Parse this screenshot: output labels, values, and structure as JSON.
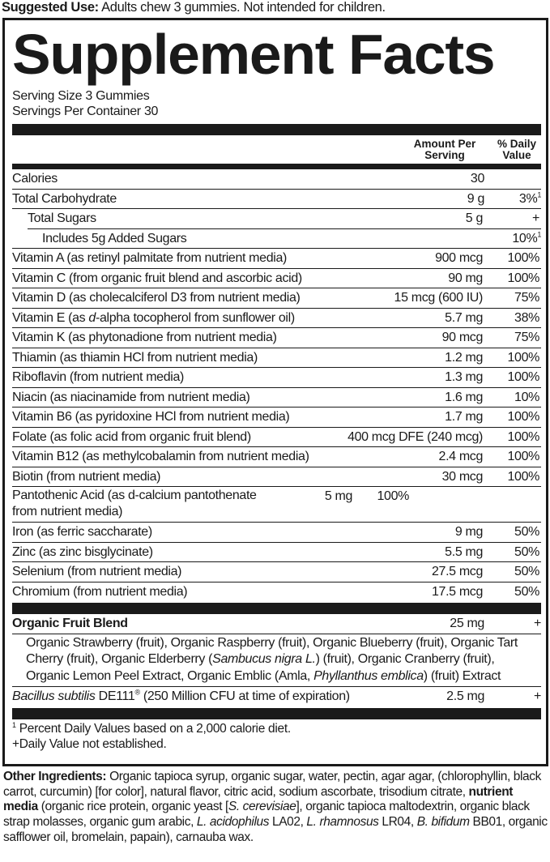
{
  "suggested_use": {
    "label": "Suggested Use:",
    "text": " Adults chew 3 gummies. Not intended for children."
  },
  "title": "Supplement Facts",
  "serving_size": "Serving Size 3 Gummies",
  "servings_per_container": "Servings Per Container 30",
  "headers": {
    "amount_line1": "Amount Per",
    "amount_line2": "Serving",
    "dv_line1": "% Daily",
    "dv_line2": "Value"
  },
  "rows": [
    {
      "name": [
        [
          "Calories",
          ""
        ]
      ],
      "amount": "30",
      "dv": ""
    },
    {
      "name": [
        [
          "Total Carbohydrate",
          ""
        ]
      ],
      "amount": "9 g",
      "dv": "3%",
      "dv_sup": "1"
    },
    {
      "name": [
        [
          "Total Sugars",
          ""
        ]
      ],
      "amount": "5 g",
      "dv": "+",
      "indent": 1
    },
    {
      "name": [
        [
          "Includes 5g Added Sugars",
          ""
        ]
      ],
      "amount": "",
      "dv": "10%",
      "dv_sup": "1",
      "indent": 2
    },
    {
      "name": [
        [
          "Vitamin A (as retinyl palmitate from nutrient media)",
          ""
        ]
      ],
      "amount": "900 mcg",
      "dv": "100%"
    },
    {
      "name": [
        [
          "Vitamin C (from organic fruit blend and ascorbic acid)",
          ""
        ]
      ],
      "amount": "90 mg",
      "dv": "100%"
    },
    {
      "name": [
        [
          "Vitamin D (as cholecalciferol D3 from nutrient media)",
          ""
        ]
      ],
      "amount": "15 mcg (600 IU)",
      "dv": "75%"
    },
    {
      "name": [
        [
          "Vitamin E (as ",
          ""
        ],
        [
          "d",
          "i"
        ],
        [
          "-alpha tocopherol from sunflower oil)",
          ""
        ]
      ],
      "amount": "5.7 mg",
      "dv": "38%"
    },
    {
      "name": [
        [
          "Vitamin K (as phytonadione from nutrient media)",
          ""
        ]
      ],
      "amount": "90 mcg",
      "dv": "75%"
    },
    {
      "name": [
        [
          "Thiamin (as thiamin HCl from nutrient media)",
          ""
        ]
      ],
      "amount": "1.2 mg",
      "dv": "100%"
    },
    {
      "name": [
        [
          "Riboflavin (from nutrient media)",
          ""
        ]
      ],
      "amount": "1.3 mg",
      "dv": "100%"
    },
    {
      "name": [
        [
          "Niacin (as niacinamide from nutrient media)",
          ""
        ]
      ],
      "amount": "1.6 mg",
      "dv": "10%"
    },
    {
      "name": [
        [
          "Vitamin B6 (as pyridoxine HCl from nutrient media)",
          ""
        ]
      ],
      "amount": "1.7 mg",
      "dv": "100%"
    },
    {
      "name": [
        [
          "Folate (as folic acid from organic fruit blend)",
          ""
        ]
      ],
      "amount": "400 mcg DFE (240 mcg)",
      "dv": "100%"
    },
    {
      "name": [
        [
          "Vitamin B12 (as methylcobalamin from nutrient media)",
          ""
        ]
      ],
      "amount": "2.4 mcg",
      "dv": "100%"
    },
    {
      "name": [
        [
          "Biotin (from nutrient media)",
          ""
        ]
      ],
      "amount": "30 mcg",
      "dv": "100%"
    },
    {
      "name": [
        [
          "Pantothenic Acid (as d-calcium pantothenate from nutrient media)",
          ""
        ]
      ],
      "amount": "5 mg",
      "dv": "100%",
      "two": true
    },
    {
      "name": [
        [
          "Iron (as ferric saccharate)",
          ""
        ]
      ],
      "amount": "9 mg",
      "dv": "50%"
    },
    {
      "name": [
        [
          "Zinc (as zinc bisglycinate)",
          ""
        ]
      ],
      "amount": "5.5 mg",
      "dv": "50%"
    },
    {
      "name": [
        [
          "Selenium (from nutrient media)",
          ""
        ]
      ],
      "amount": "27.5 mcg",
      "dv": "50%"
    },
    {
      "name": [
        [
          "Chromium (from nutrient media)",
          ""
        ]
      ],
      "amount": "17.5 mcg",
      "dv": "50%"
    }
  ],
  "blend": {
    "name": "Organic Fruit Blend",
    "amount": "25 mg",
    "dv": "+",
    "ingredients": [
      [
        "Organic Strawberry (fruit), Organic Raspberry (fruit), Organic Blueberry (fruit), Organic Tart Cherry (fruit), Organic Elderberry (",
        ""
      ],
      [
        "Sambucus nigra L.",
        "i"
      ],
      [
        ") (fruit), Organic Cranberry (fruit), Organic Lemon Peel Extract, Organic Emblic (Amla, ",
        ""
      ],
      [
        "Phyllanthus emblica",
        "i"
      ],
      [
        ") (fruit) Extract",
        ""
      ]
    ]
  },
  "probiotic": {
    "name_italic": "Bacillus subtilis",
    "name_rest": " DE111",
    "reg": "®",
    "detail": " (250 Million CFU at time of expiration)",
    "amount": "2.5 mg",
    "dv": "+"
  },
  "footnotes": {
    "sup": "1",
    "note1": " Percent Daily Values based on a 2,000 calorie diet.",
    "note2": "+Daily Value not established."
  },
  "other_ingredients": {
    "label": "Other Ingredients:",
    "segments": [
      [
        " Organic tapioca syrup, organic sugar, water, pectin, agar agar, (chlorophyllin, black carrot, curcumin) [for color], natural flavor, citric acid, sodium ascorbate, trisodium citrate, ",
        ""
      ],
      [
        "nutrient media",
        "b"
      ],
      [
        " (organic rice protein, organic yeast [",
        ""
      ],
      [
        "S. cerevisiae",
        "i"
      ],
      [
        "], organic tapioca maltodextrin, organic black strap molasses, organic gum arabic, ",
        ""
      ],
      [
        "L. acidophilus",
        "i"
      ],
      [
        " LA02, ",
        ""
      ],
      [
        "L. rhamnosus",
        "i"
      ],
      [
        " LR04, ",
        ""
      ],
      [
        "B. bifidum",
        "i"
      ],
      [
        " BB01, organic safflower oil, bromelain, papain), carnauba wax.",
        ""
      ]
    ]
  }
}
